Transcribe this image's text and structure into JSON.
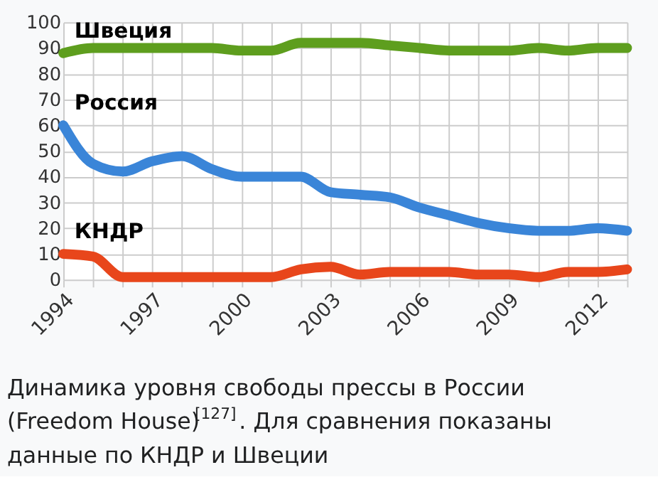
{
  "chart_data": {
    "type": "line",
    "x": [
      1994,
      1995,
      1996,
      1997,
      1998,
      1999,
      2000,
      2001,
      2002,
      2003,
      2004,
      2005,
      2006,
      2007,
      2008,
      2009,
      2010,
      2011,
      2012,
      2013
    ],
    "series": [
      {
        "name": "Швеция",
        "color": "#5e9e1e",
        "values": [
          88,
          90,
          90,
          90,
          90,
          90,
          89,
          89,
          92,
          92,
          92,
          91,
          90,
          89,
          89,
          89,
          90,
          89,
          90,
          90
        ]
      },
      {
        "name": "Россия",
        "color": "#3a85d8",
        "values": [
          60,
          45,
          42,
          46,
          48,
          43,
          40,
          40,
          40,
          34,
          33,
          32,
          28,
          25,
          22,
          20,
          19,
          19,
          20,
          19
        ]
      },
      {
        "name": "КНДР",
        "color": "#e8461b",
        "values": [
          10,
          9,
          1,
          1,
          1,
          1,
          1,
          1,
          4,
          5,
          2,
          3,
          3,
          3,
          2,
          2,
          1,
          3,
          3,
          4
        ]
      }
    ],
    "xlim": [
      1994,
      2013
    ],
    "xticks": [
      1994,
      {
        "value": 1995,
        "label": null
      },
      {
        "value": 1996,
        "label": null
      },
      1997,
      {
        "value": 1998,
        "label": null
      },
      {
        "value": 1999,
        "label": null
      },
      2000,
      {
        "value": 2001,
        "label": null
      },
      {
        "value": 2002,
        "label": null
      },
      2003,
      {
        "value": 2004,
        "label": null
      },
      {
        "value": 2005,
        "label": null
      },
      2006,
      {
        "value": 2007,
        "label": null
      },
      {
        "value": 2008,
        "label": null
      },
      2009,
      {
        "value": 2010,
        "label": null
      },
      {
        "value": 2011,
        "label": null
      },
      2012,
      {
        "value": 2013,
        "label": null
      }
    ],
    "ylim": [
      0,
      100
    ],
    "yticks": [
      0,
      10,
      20,
      30,
      40,
      50,
      60,
      70,
      80,
      90,
      100
    ],
    "grid": true,
    "legend": false,
    "marker": "none",
    "line_style": "solid",
    "annotations": [
      "Динамика уровня свободы прессы в России (Freedom House)$^{[127]}$. Для сравнения показаны данные по КНДР и Швеции"
    ]
  }
}
